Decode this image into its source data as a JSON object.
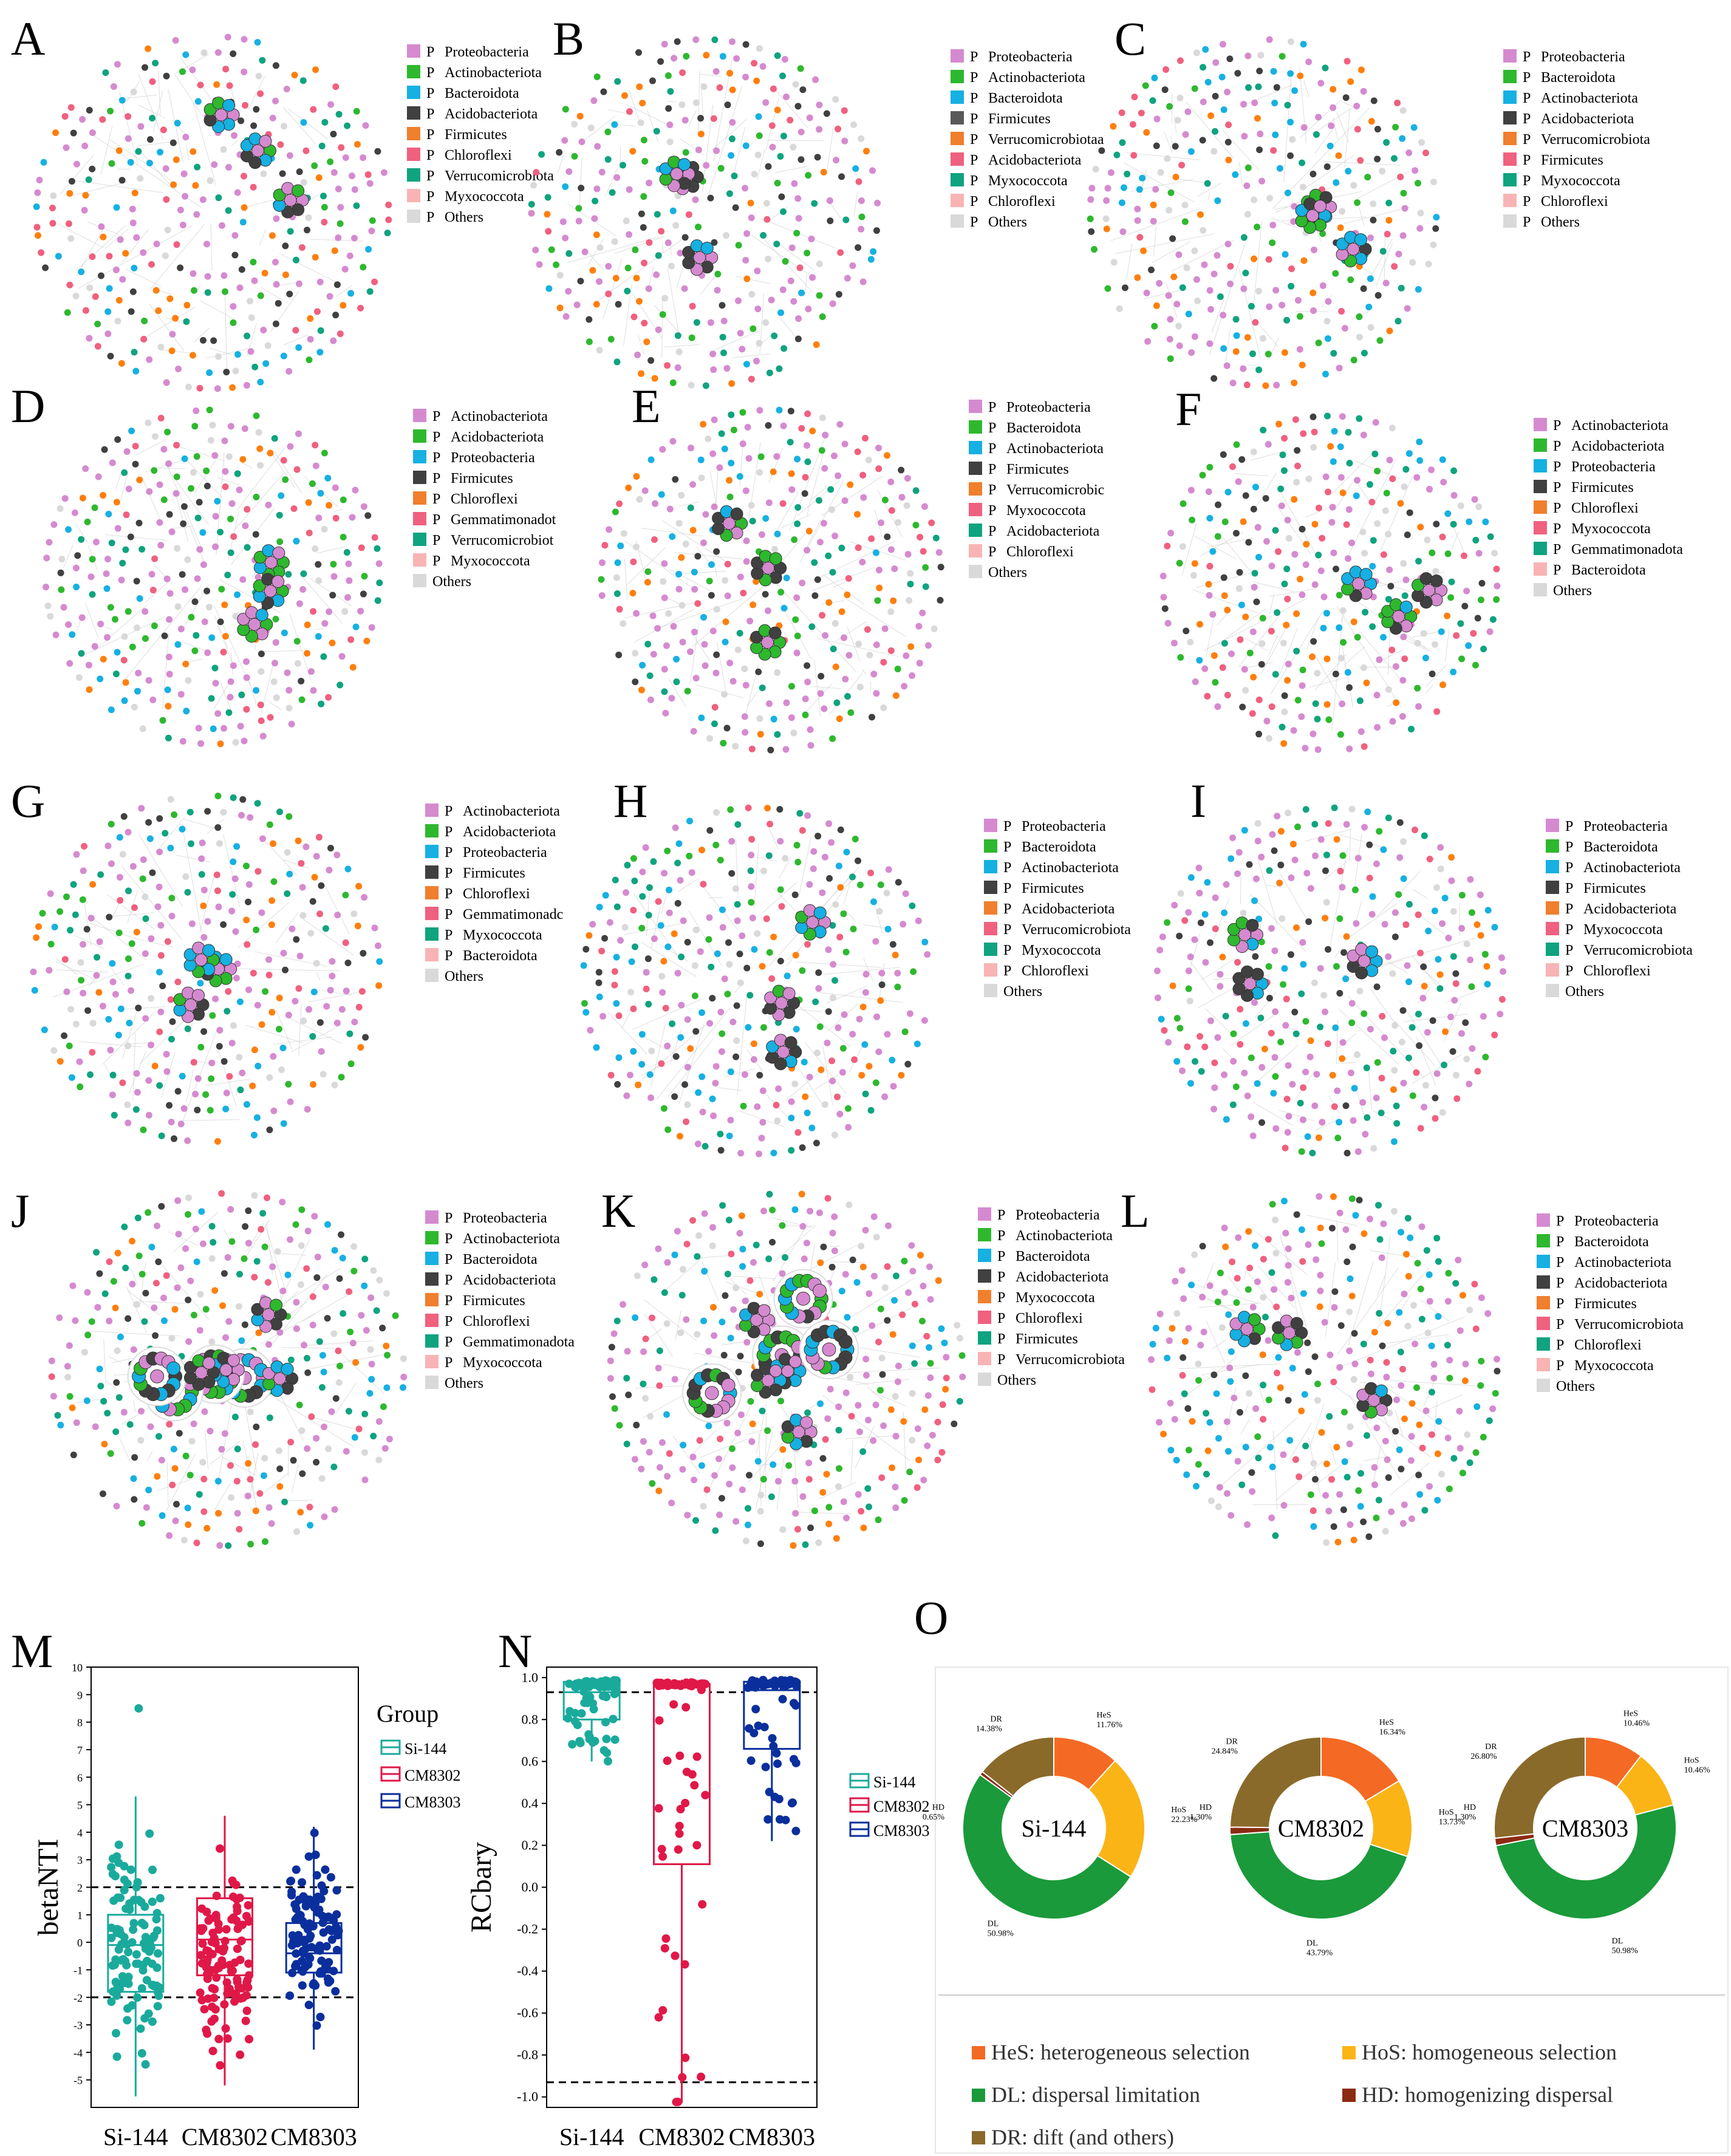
{
  "colors": {
    "proteobacteria": "#d58ad0",
    "actinobacteriota": "#2eb82e",
    "bacteroidota": "#16b0e2",
    "acidobacteriota": "#404040",
    "firmicutes": "#595959",
    "chloroflexi": "#ff7f0e",
    "verrucomicrobiota": "#0fa37f",
    "myxococcota": "#f0607f",
    "gemmatimonadota": "#f0607f",
    "pinkish": "#f8b4b4",
    "others": "#d9d9d9",
    "si144": "#1aaa9c",
    "cm8302": "#e01848",
    "cm8303": "#0a2f9c",
    "hes": "#f46a24",
    "hos": "#fbb416",
    "dl": "#1a9a3a",
    "hd": "#8b2a12",
    "dr": "#8a6a2a"
  },
  "networks": [
    {
      "letter": "A",
      "legend": [
        [
          "P",
          "Proteobacteria",
          "#d58ad0"
        ],
        [
          "P",
          "Actinobacteriota",
          "#2eb82e"
        ],
        [
          "P",
          "Bacteroidota",
          "#16b0e2"
        ],
        [
          "P",
          "Acidobacteriota",
          "#404040"
        ],
        [
          "P",
          "Firmicutes",
          "#f07f2e"
        ],
        [
          "P",
          "Chloroflexi",
          "#f0607f"
        ],
        [
          "P",
          "Verrucomicrobiota",
          "#0fa37f"
        ],
        [
          "P",
          "Myxococcota",
          "#f8b4b4"
        ],
        [
          "P",
          "Others",
          "#d9d9d9"
        ]
      ]
    },
    {
      "letter": "B",
      "legend": [
        [
          "P",
          "Proteobacteria",
          "#d58ad0"
        ],
        [
          "P",
          "Actinobacteriota",
          "#2eb82e"
        ],
        [
          "P",
          "Bacteroidota",
          "#16b0e2"
        ],
        [
          "P",
          "Firmicutes",
          "#595959"
        ],
        [
          "P",
          "Verrucomicrobiotaa",
          "#f07f2e"
        ],
        [
          "P",
          "Acidobacteriota",
          "#f0607f"
        ],
        [
          "P",
          "Myxococcota",
          "#0fa37f"
        ],
        [
          "P",
          "Chloroflexi",
          "#f8b4b4"
        ],
        [
          "P",
          "Others",
          "#d9d9d9"
        ]
      ]
    },
    {
      "letter": "C",
      "legend": [
        [
          "P",
          "Proteobacteria",
          "#d58ad0"
        ],
        [
          "P",
          "Bacteroidota",
          "#2eb82e"
        ],
        [
          "P",
          "Actinobacteriota",
          "#16b0e2"
        ],
        [
          "P",
          "Acidobacteriota",
          "#404040"
        ],
        [
          "P",
          "Verrucomicrobiota",
          "#f07f2e"
        ],
        [
          "P",
          "Firmicutes",
          "#f0607f"
        ],
        [
          "P",
          "Myxococcota",
          "#0fa37f"
        ],
        [
          "P",
          "Chloroflexi",
          "#f8b4b4"
        ],
        [
          "P",
          "Others",
          "#d9d9d9"
        ]
      ]
    },
    {
      "letter": "D",
      "legend": [
        [
          "P",
          "Actinobacteriota",
          "#d58ad0"
        ],
        [
          "P",
          "Acidobacteriota",
          "#2eb82e"
        ],
        [
          "P",
          "Proteobacteria",
          "#16b0e2"
        ],
        [
          "P",
          "Firmicutes",
          "#404040"
        ],
        [
          "P",
          "Chloroflexi",
          "#f07f2e"
        ],
        [
          "P",
          "Gemmatimonadot",
          "#f0607f"
        ],
        [
          "P",
          "Verrucomicrobiot",
          "#0fa37f"
        ],
        [
          "P",
          "Myxococcota",
          "#f8b4b4"
        ],
        [
          "",
          "Others",
          "#d9d9d9"
        ]
      ]
    },
    {
      "letter": "E",
      "legend": [
        [
          "P",
          "Proteobacteria",
          "#d58ad0"
        ],
        [
          "P",
          "Bacteroidota",
          "#2eb82e"
        ],
        [
          "P",
          "Actinobacteriota",
          "#16b0e2"
        ],
        [
          "P",
          "Firmicutes",
          "#404040"
        ],
        [
          "P",
          "Verrucomicrobic",
          "#f07f2e"
        ],
        [
          "P",
          "Myxococcota",
          "#f0607f"
        ],
        [
          "P",
          "Acidobacteriota",
          "#0fa37f"
        ],
        [
          "P",
          "Chloroflexi",
          "#f8b4b4"
        ],
        [
          "",
          "Others",
          "#d9d9d9"
        ]
      ]
    },
    {
      "letter": "F",
      "legend": [
        [
          "P",
          "Actinobacteriota",
          "#d58ad0"
        ],
        [
          "P",
          "Acidobacteriota",
          "#2eb82e"
        ],
        [
          "P",
          "Proteobacteria",
          "#16b0e2"
        ],
        [
          "P",
          "Firmicutes",
          "#404040"
        ],
        [
          "P",
          "Chloroflexi",
          "#f07f2e"
        ],
        [
          "P",
          "Myxococcota",
          "#f0607f"
        ],
        [
          "P",
          "Gemmatimonadota",
          "#0fa37f"
        ],
        [
          "P",
          "Bacteroidota",
          "#f8b4b4"
        ],
        [
          "",
          "Others",
          "#d9d9d9"
        ]
      ]
    },
    {
      "letter": "G",
      "legend": [
        [
          "P",
          "Actinobacteriota",
          "#d58ad0"
        ],
        [
          "P",
          "Acidobacteriota",
          "#2eb82e"
        ],
        [
          "P",
          "Proteobacteria",
          "#16b0e2"
        ],
        [
          "P",
          "Firmicutes",
          "#404040"
        ],
        [
          "P",
          "Chloroflexi",
          "#f07f2e"
        ],
        [
          "P",
          "Gemmatimonadc",
          "#f0607f"
        ],
        [
          "P",
          "Myxococcota",
          "#0fa37f"
        ],
        [
          "P",
          "Bacteroidota",
          "#f8b4b4"
        ],
        [
          "",
          "Others",
          "#d9d9d9"
        ]
      ]
    },
    {
      "letter": "H",
      "legend": [
        [
          "P",
          "Proteobacteria",
          "#d58ad0"
        ],
        [
          "P",
          "Bacteroidota",
          "#2eb82e"
        ],
        [
          "P",
          "Actinobacteriota",
          "#16b0e2"
        ],
        [
          "P",
          "Firmicutes",
          "#404040"
        ],
        [
          "P",
          "Acidobacteriota",
          "#f07f2e"
        ],
        [
          "P",
          "Verrucomicrobiota",
          "#f0607f"
        ],
        [
          "P",
          "Myxococcota",
          "#0fa37f"
        ],
        [
          "P",
          "Chloroflexi",
          "#f8b4b4"
        ],
        [
          "",
          "Others",
          "#d9d9d9"
        ]
      ]
    },
    {
      "letter": "I",
      "legend": [
        [
          "P",
          "Proteobacteria",
          "#d58ad0"
        ],
        [
          "P",
          "Bacteroidota",
          "#2eb82e"
        ],
        [
          "P",
          "Actinobacteriota",
          "#16b0e2"
        ],
        [
          "P",
          "Firmicutes",
          "#404040"
        ],
        [
          "P",
          "Acidobacteriota",
          "#f07f2e"
        ],
        [
          "P",
          "Myxococcota",
          "#f0607f"
        ],
        [
          "P",
          "Verrucomicrobiota",
          "#0fa37f"
        ],
        [
          "P",
          "Chloroflexi",
          "#f8b4b4"
        ],
        [
          "",
          "Others",
          "#d9d9d9"
        ]
      ]
    },
    {
      "letter": "J",
      "legend": [
        [
          "P",
          "Proteobacteria",
          "#d58ad0"
        ],
        [
          "P",
          "Actinobacteriota",
          "#2eb82e"
        ],
        [
          "P",
          "Bacteroidota",
          "#16b0e2"
        ],
        [
          "P",
          "Acidobacteriota",
          "#404040"
        ],
        [
          "P",
          "Firmicutes",
          "#f07f2e"
        ],
        [
          "P",
          "Chloroflexi",
          "#f0607f"
        ],
        [
          "P",
          "Gemmatimonadota",
          "#0fa37f"
        ],
        [
          "P",
          "Myxococcota",
          "#f8b4b4"
        ],
        [
          "",
          "Others",
          "#d9d9d9"
        ]
      ]
    },
    {
      "letter": "K",
      "legend": [
        [
          "P",
          "Proteobacteria",
          "#d58ad0"
        ],
        [
          "P",
          "Actinobacteriota",
          "#2eb82e"
        ],
        [
          "P",
          "Bacteroidota",
          "#16b0e2"
        ],
        [
          "P",
          "Acidobacteriota",
          "#404040"
        ],
        [
          "P",
          "Myxococcota",
          "#f07f2e"
        ],
        [
          "P",
          "Chloroflexi",
          "#f0607f"
        ],
        [
          "P",
          "Firmicutes",
          "#0fa37f"
        ],
        [
          "P",
          "Verrucomicrobiota",
          "#f8b4b4"
        ],
        [
          "",
          "Others",
          "#d9d9d9"
        ]
      ]
    },
    {
      "letter": "L",
      "legend": [
        [
          "P",
          "Proteobacteria",
          "#d58ad0"
        ],
        [
          "P",
          "Bacteroidota",
          "#2eb82e"
        ],
        [
          "P",
          "Actinobacteriota",
          "#16b0e2"
        ],
        [
          "P",
          "Acidobacteriota",
          "#404040"
        ],
        [
          "P",
          "Firmicutes",
          "#f07f2e"
        ],
        [
          "P",
          "Verrucomicrobiota",
          "#f0607f"
        ],
        [
          "P",
          "Chloroflexi",
          "#0fa37f"
        ],
        [
          "P",
          "Myxococcota",
          "#f8b4b4"
        ],
        [
          "",
          "Others",
          "#d9d9d9"
        ]
      ]
    }
  ],
  "chart_data": [
    {
      "panel": "M",
      "type": "box",
      "ylabel": "betaNTI",
      "ylim": [
        -6,
        10
      ],
      "yticks": [
        -5,
        -4,
        -3,
        -2,
        -1,
        0,
        1,
        2,
        3,
        4,
        5,
        6,
        7,
        8,
        9,
        10
      ],
      "ref_lines": [
        2,
        -2
      ],
      "categories": [
        "Si-144",
        "CM8302",
        "CM8303"
      ],
      "legend_title": "Group",
      "series": [
        {
          "name": "Si-144",
          "q1": -1.8,
          "median": -0.1,
          "q3": 1.0,
          "whisker_low": -5.6,
          "whisker_high": 5.3,
          "max_point": 8.5
        },
        {
          "name": "CM8302",
          "q1": -1.2,
          "median": 0.1,
          "q3": 1.6,
          "whisker_low": -5.2,
          "whisker_high": 4.6
        },
        {
          "name": "CM8303",
          "q1": -1.1,
          "median": -0.4,
          "q3": 0.7,
          "whisker_low": -3.9,
          "whisker_high": 4.2
        }
      ]
    },
    {
      "panel": "N",
      "type": "box",
      "ylabel": "RCbary",
      "ylim": [
        -1.05,
        1.05
      ],
      "yticks": [
        -1.0,
        -0.8,
        -0.6,
        -0.4,
        -0.2,
        0,
        0.2,
        0.4,
        0.6,
        0.8,
        1.0
      ],
      "ref_lines": [
        0.93,
        -0.93
      ],
      "categories": [
        "Si-144",
        "CM8302",
        "CM8303"
      ],
      "series": [
        {
          "name": "Si-144",
          "q1": 0.8,
          "median": 0.93,
          "q3": 0.98,
          "whisker_low": 0.6,
          "whisker_high": 0.99
        },
        {
          "name": "CM8302",
          "q1": 0.11,
          "median": 0.96,
          "q3": 0.97,
          "whisker_low": -1.03,
          "whisker_high": 0.99
        },
        {
          "name": "CM8303",
          "q1": 0.66,
          "median": 0.94,
          "q3": 0.98,
          "whisker_low": 0.22,
          "whisker_high": 0.99
        }
      ]
    },
    {
      "panel": "O",
      "type": "pie",
      "donuts": [
        {
          "name": "Si-144",
          "slices": [
            {
              "label": "HeS",
              "pct": "11.76%",
              "value": 11.76
            },
            {
              "label": "HoS",
              "pct": "22.23%",
              "value": 22.23
            },
            {
              "label": "DL",
              "pct": "50.98%",
              "value": 50.98
            },
            {
              "label": "HD",
              "pct": "0.65%",
              "value": 0.65
            },
            {
              "label": "DR",
              "pct": "14.38%",
              "value": 14.38
            }
          ]
        },
        {
          "name": "CM8302",
          "slices": [
            {
              "label": "HeS",
              "pct": "16.34%",
              "value": 16.34
            },
            {
              "label": "HoS",
              "pct": "13.73%",
              "value": 13.73
            },
            {
              "label": "DL",
              "pct": "43.79%",
              "value": 43.79
            },
            {
              "label": "HD",
              "pct": "1.30%",
              "value": 1.3
            },
            {
              "label": "DR",
              "pct": "24.84%",
              "value": 24.84
            }
          ]
        },
        {
          "name": "CM8303",
          "slices": [
            {
              "label": "HeS",
              "pct": "10.46%",
              "value": 10.46
            },
            {
              "label": "HoS",
              "pct": "10.46%",
              "value": 10.46
            },
            {
              "label": "DL",
              "pct": "50.98%",
              "value": 50.98
            },
            {
              "label": "HD",
              "pct": "1.30%",
              "value": 1.3
            },
            {
              "label": "DR",
              "pct": "26.80%",
              "value": 26.8
            }
          ]
        }
      ],
      "legend": [
        {
          "key": "HeS",
          "text": "HeS: heterogeneous selection",
          "color": "#f46a24"
        },
        {
          "key": "HoS",
          "text": "HoS: homogeneous selection",
          "color": "#fbb416"
        },
        {
          "key": "DL",
          "text": "DL: dispersal limitation",
          "color": "#1a9a3a"
        },
        {
          "key": "HD",
          "text": "HD: homogenizing dispersal",
          "color": "#8b2a12"
        },
        {
          "key": "DR",
          "text": "DR: dift (and others)",
          "color": "#8a6a2a"
        }
      ]
    }
  ],
  "panel_letters": {
    "M": "M",
    "N": "N",
    "O": "O"
  }
}
